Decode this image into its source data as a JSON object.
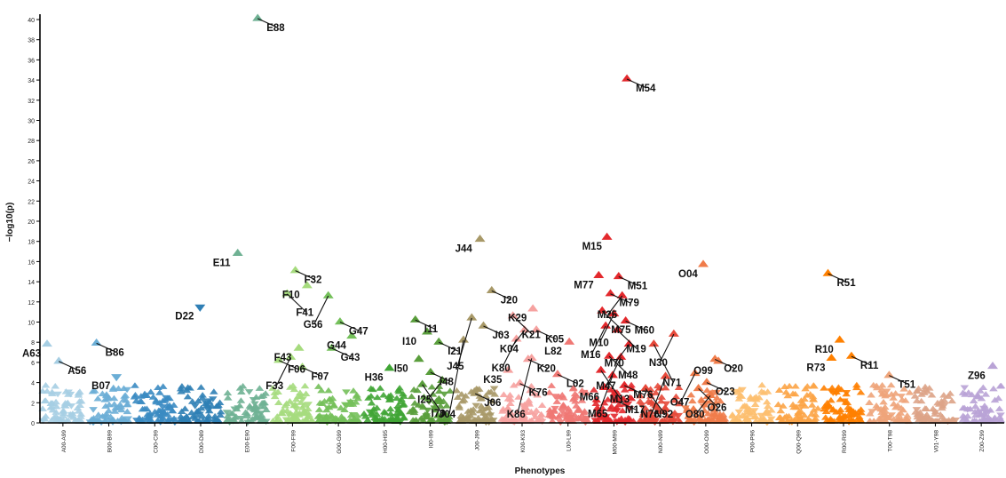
{
  "chart_data": {
    "type": "scatter",
    "xlabel": "Phenotypes",
    "ylabel": "−log10(p)",
    "ylim": [
      0,
      40
    ],
    "yticks": [
      0,
      2,
      4,
      6,
      8,
      10,
      12,
      14,
      16,
      18,
      20,
      22,
      24,
      26,
      28,
      30,
      32,
      34,
      36,
      38,
      40
    ],
    "groups": [
      {
        "label": "A00-A99",
        "color": "#a6cee3"
      },
      {
        "label": "B00-B99",
        "color": "#6baed6"
      },
      {
        "label": "C00-C99",
        "color": "#3b8bc2"
      },
      {
        "label": "D00-D89",
        "color": "#2f7fb5"
      },
      {
        "label": "E00-E90",
        "color": "#6fb193"
      },
      {
        "label": "F00-F99",
        "color": "#a6db7e"
      },
      {
        "label": "G00-G99",
        "color": "#74c05a"
      },
      {
        "label": "H00-H95",
        "color": "#40a535"
      },
      {
        "label": "I00-I99",
        "color": "#5a9e3c"
      },
      {
        "label": "J00-J99",
        "color": "#a89968"
      },
      {
        "label": "K00-K93",
        "color": "#f6a2a0"
      },
      {
        "label": "L00-L99",
        "color": "#f07874"
      },
      {
        "label": "M00-M99",
        "color": "#e3292d"
      },
      {
        "label": "N00-N99",
        "color": "#e6493a"
      },
      {
        "label": "O00-O99",
        "color": "#f07c4a"
      },
      {
        "label": "P00-P96",
        "color": "#fdbf6f"
      },
      {
        "label": "Q00-Q99",
        "color": "#fca446"
      },
      {
        "label": "R00-R99",
        "color": "#ff8000"
      },
      {
        "label": "T00-T98",
        "color": "#eea47a"
      },
      {
        "label": "V01-Y98",
        "color": "#dda387"
      },
      {
        "label": "Z00-Z99",
        "color": "#b9a3d6"
      }
    ],
    "labeled_points": [
      {
        "name": "A63",
        "group": 0,
        "y": 7.8
      },
      {
        "name": "A56",
        "group": 0,
        "y": 6.1
      },
      {
        "name": "B07",
        "group": 1,
        "y": 4.6,
        "dir": "down"
      },
      {
        "name": "B86",
        "group": 1,
        "y": 7.9
      },
      {
        "name": "D22",
        "group": 3,
        "y": 11.5,
        "dir": "down"
      },
      {
        "name": "E88",
        "group": 4,
        "y": 40.1
      },
      {
        "name": "E11",
        "group": 4,
        "y": 16.8
      },
      {
        "name": "F32",
        "group": 5,
        "y": 15.1
      },
      {
        "name": "F10",
        "group": 5,
        "y": 13.6
      },
      {
        "name": "F41",
        "group": 5,
        "y": 12.8
      },
      {
        "name": "F43",
        "group": 5,
        "y": 7.4
      },
      {
        "name": "F06",
        "group": 5,
        "y": 6.2
      },
      {
        "name": "F33",
        "group": 5,
        "y": 6.5
      },
      {
        "name": "F07",
        "group": 5,
        "y": 5.5
      },
      {
        "name": "G56",
        "group": 6,
        "y": 12.6
      },
      {
        "name": "G47",
        "group": 6,
        "y": 10.0
      },
      {
        "name": "G44",
        "group": 6,
        "y": 8.6
      },
      {
        "name": "G43",
        "group": 6,
        "y": 7.4
      },
      {
        "name": "H36",
        "group": 7,
        "y": 5.4
      },
      {
        "name": "I11",
        "group": 8,
        "y": 10.2
      },
      {
        "name": "I10",
        "group": 8,
        "y": 9.0
      },
      {
        "name": "I21",
        "group": 8,
        "y": 8.0
      },
      {
        "name": "I50",
        "group": 8,
        "y": 6.3
      },
      {
        "name": "I48",
        "group": 8,
        "y": 5.0
      },
      {
        "name": "I25",
        "group": 8,
        "y": 4.2
      },
      {
        "name": "I70",
        "group": 8,
        "y": 3.8
      },
      {
        "name": "J44",
        "group": 9,
        "y": 18.2
      },
      {
        "name": "J20",
        "group": 9,
        "y": 13.1
      },
      {
        "name": "J45",
        "group": 9,
        "y": 10.4
      },
      {
        "name": "J03",
        "group": 9,
        "y": 9.6
      },
      {
        "name": "J04",
        "group": 9,
        "y": 8.2
      },
      {
        "name": "J06",
        "group": 9,
        "y": 2.9
      },
      {
        "name": "K29",
        "group": 10,
        "y": 11.3
      },
      {
        "name": "K21",
        "group": 10,
        "y": 10.6
      },
      {
        "name": "K04",
        "group": 10,
        "y": 9.2
      },
      {
        "name": "K05",
        "group": 10,
        "y": 9.2
      },
      {
        "name": "K80",
        "group": 10,
        "y": 8.3
      },
      {
        "name": "K20",
        "group": 10,
        "y": 6.3
      },
      {
        "name": "K35",
        "group": 10,
        "y": 5.2
      },
      {
        "name": "K76",
        "group": 10,
        "y": 3.9
      },
      {
        "name": "K86",
        "group": 10,
        "y": 6.4
      },
      {
        "name": "L02",
        "group": 11,
        "y": 4.8
      },
      {
        "name": "L82",
        "group": 11,
        "y": 8.0
      },
      {
        "name": "M54",
        "group": 12,
        "y": 34.1
      },
      {
        "name": "M15",
        "group": 12,
        "y": 18.4
      },
      {
        "name": "M51",
        "group": 12,
        "y": 14.5
      },
      {
        "name": "M77",
        "group": 12,
        "y": 14.6
      },
      {
        "name": "M79",
        "group": 12,
        "y": 12.8
      },
      {
        "name": "M25",
        "group": 12,
        "y": 12.6
      },
      {
        "name": "M75",
        "group": 12,
        "y": 11.1
      },
      {
        "name": "M10",
        "group": 12,
        "y": 10.8
      },
      {
        "name": "M60",
        "group": 12,
        "y": 10.1
      },
      {
        "name": "M16",
        "group": 12,
        "y": 9.6
      },
      {
        "name": "M19",
        "group": 12,
        "y": 9.2
      },
      {
        "name": "M70",
        "group": 12,
        "y": 7.8
      },
      {
        "name": "M48",
        "group": 12,
        "y": 6.6
      },
      {
        "name": "M47",
        "group": 12,
        "y": 6.5
      },
      {
        "name": "M13",
        "group": 12,
        "y": 5.2
      },
      {
        "name": "M65",
        "group": 12,
        "y": 4.7
      },
      {
        "name": "M76",
        "group": 12,
        "y": 3.7
      },
      {
        "name": "M66",
        "group": 12,
        "y": 3.5
      },
      {
        "name": "M17",
        "group": 12,
        "y": 2.2
      },
      {
        "name": "N30",
        "group": 13,
        "y": 8.8
      },
      {
        "name": "N71",
        "group": 13,
        "y": 7.8
      },
      {
        "name": "N76",
        "group": 13,
        "y": 4.6
      },
      {
        "name": "N92",
        "group": 13,
        "y": 3.4
      },
      {
        "name": "O04",
        "group": 14,
        "y": 15.7
      },
      {
        "name": "O20",
        "group": 14,
        "y": 6.3
      },
      {
        "name": "O47",
        "group": 14,
        "y": 4.9
      },
      {
        "name": "O23",
        "group": 14,
        "y": 4.0
      },
      {
        "name": "O99",
        "group": 14,
        "y": 6.1
      },
      {
        "name": "O26",
        "group": 14,
        "y": 3.4
      },
      {
        "name": "O80",
        "group": 14,
        "y": 2.7
      },
      {
        "name": "R51",
        "group": 17,
        "y": 14.8
      },
      {
        "name": "R10",
        "group": 17,
        "y": 8.2
      },
      {
        "name": "R11",
        "group": 17,
        "y": 6.6
      },
      {
        "name": "R73",
        "group": 17,
        "y": 6.4
      },
      {
        "name": "T51",
        "group": 18,
        "y": 4.7
      },
      {
        "name": "Z96",
        "group": 20,
        "y": 5.6
      }
    ]
  }
}
